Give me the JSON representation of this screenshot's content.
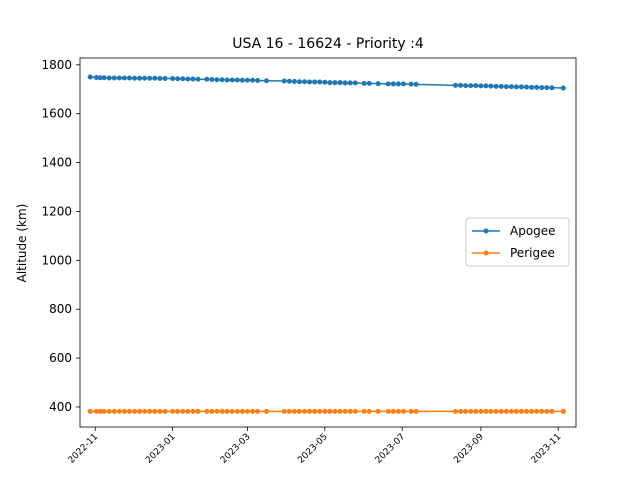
{
  "chart_data": {
    "type": "line",
    "title": "USA 16 - 16624 - Priority :4",
    "xlabel": "",
    "ylabel": "Altitude (km)",
    "ylim": [
      318,
      1828
    ],
    "xlim": [
      "2022-10-20",
      "2023-11-15"
    ],
    "yticks": [
      400,
      600,
      800,
      1000,
      1200,
      1400,
      1600,
      1800
    ],
    "xticks": [
      "2022-11",
      "2023-01",
      "2023-03",
      "2023-05",
      "2023-07",
      "2023-09",
      "2023-11"
    ],
    "grid": false,
    "legend_position": "center-right",
    "series": [
      {
        "name": "Apogee",
        "color": "#1f77b4",
        "points": [
          [
            "2022-10-28",
            1750
          ],
          [
            "2022-11-02",
            1748
          ],
          [
            "2022-11-05",
            1747
          ],
          [
            "2022-11-08",
            1747
          ],
          [
            "2022-11-12",
            1746
          ],
          [
            "2022-11-16",
            1746
          ],
          [
            "2022-11-20",
            1746
          ],
          [
            "2022-11-24",
            1746
          ],
          [
            "2022-11-28",
            1746
          ],
          [
            "2022-12-02",
            1745
          ],
          [
            "2022-12-06",
            1745
          ],
          [
            "2022-12-10",
            1745
          ],
          [
            "2022-12-14",
            1745
          ],
          [
            "2022-12-18",
            1745
          ],
          [
            "2022-12-22",
            1744
          ],
          [
            "2022-12-26",
            1744
          ],
          [
            "2023-01-01",
            1744
          ],
          [
            "2023-01-05",
            1743
          ],
          [
            "2023-01-09",
            1743
          ],
          [
            "2023-01-13",
            1742
          ],
          [
            "2023-01-17",
            1742
          ],
          [
            "2023-01-21",
            1741
          ],
          [
            "2023-01-28",
            1741
          ],
          [
            "2023-02-01",
            1740
          ],
          [
            "2023-02-05",
            1739
          ],
          [
            "2023-02-09",
            1739
          ],
          [
            "2023-02-13",
            1738
          ],
          [
            "2023-02-17",
            1738
          ],
          [
            "2023-02-21",
            1738
          ],
          [
            "2023-02-25",
            1737
          ],
          [
            "2023-03-01",
            1737
          ],
          [
            "2023-03-05",
            1737
          ],
          [
            "2023-03-09",
            1736
          ],
          [
            "2023-03-16",
            1735
          ],
          [
            "2023-03-30",
            1734
          ],
          [
            "2023-04-03",
            1733
          ],
          [
            "2023-04-07",
            1732
          ],
          [
            "2023-04-11",
            1731
          ],
          [
            "2023-04-15",
            1731
          ],
          [
            "2023-04-19",
            1730
          ],
          [
            "2023-04-23",
            1730
          ],
          [
            "2023-04-27",
            1730
          ],
          [
            "2023-05-01",
            1729
          ],
          [
            "2023-05-05",
            1727
          ],
          [
            "2023-05-09",
            1727
          ],
          [
            "2023-05-13",
            1727
          ],
          [
            "2023-05-17",
            1726
          ],
          [
            "2023-05-21",
            1726
          ],
          [
            "2023-05-25",
            1726
          ],
          [
            "2023-06-01",
            1724
          ],
          [
            "2023-06-05",
            1724
          ],
          [
            "2023-06-12",
            1723
          ],
          [
            "2023-06-20",
            1722
          ],
          [
            "2023-06-24",
            1722
          ],
          [
            "2023-06-28",
            1722
          ],
          [
            "2023-07-02",
            1722
          ],
          [
            "2023-07-08",
            1721
          ],
          [
            "2023-07-12",
            1720
          ],
          [
            "2023-08-12",
            1716
          ],
          [
            "2023-08-16",
            1716
          ],
          [
            "2023-08-20",
            1715
          ],
          [
            "2023-08-24",
            1715
          ],
          [
            "2023-08-28",
            1715
          ],
          [
            "2023-09-01",
            1714
          ],
          [
            "2023-09-05",
            1714
          ],
          [
            "2023-09-09",
            1713
          ],
          [
            "2023-09-13",
            1712
          ],
          [
            "2023-09-17",
            1712
          ],
          [
            "2023-09-21",
            1711
          ],
          [
            "2023-09-25",
            1711
          ],
          [
            "2023-09-29",
            1710
          ],
          [
            "2023-10-03",
            1710
          ],
          [
            "2023-10-07",
            1709
          ],
          [
            "2023-10-11",
            1708
          ],
          [
            "2023-10-15",
            1708
          ],
          [
            "2023-10-19",
            1707
          ],
          [
            "2023-10-23",
            1707
          ],
          [
            "2023-10-27",
            1706
          ],
          [
            "2023-11-05",
            1705
          ]
        ]
      },
      {
        "name": "Perigee",
        "color": "#ff7f0e",
        "points": [
          [
            "2022-10-28",
            382
          ],
          [
            "2022-11-02",
            382
          ],
          [
            "2022-11-05",
            382
          ],
          [
            "2022-11-08",
            382
          ],
          [
            "2022-11-12",
            382
          ],
          [
            "2022-11-16",
            382
          ],
          [
            "2022-11-20",
            382
          ],
          [
            "2022-11-24",
            382
          ],
          [
            "2022-11-28",
            382
          ],
          [
            "2022-12-02",
            382
          ],
          [
            "2022-12-06",
            382
          ],
          [
            "2022-12-10",
            382
          ],
          [
            "2022-12-14",
            382
          ],
          [
            "2022-12-18",
            382
          ],
          [
            "2022-12-22",
            382
          ],
          [
            "2022-12-26",
            382
          ],
          [
            "2023-01-01",
            382
          ],
          [
            "2023-01-05",
            382
          ],
          [
            "2023-01-09",
            382
          ],
          [
            "2023-01-13",
            382
          ],
          [
            "2023-01-17",
            382
          ],
          [
            "2023-01-21",
            382
          ],
          [
            "2023-01-28",
            382
          ],
          [
            "2023-02-01",
            382
          ],
          [
            "2023-02-05",
            382
          ],
          [
            "2023-02-09",
            382
          ],
          [
            "2023-02-13",
            382
          ],
          [
            "2023-02-17",
            382
          ],
          [
            "2023-02-21",
            382
          ],
          [
            "2023-02-25",
            382
          ],
          [
            "2023-03-01",
            382
          ],
          [
            "2023-03-05",
            382
          ],
          [
            "2023-03-09",
            382
          ],
          [
            "2023-03-16",
            382
          ],
          [
            "2023-03-30",
            382
          ],
          [
            "2023-04-03",
            382
          ],
          [
            "2023-04-07",
            382
          ],
          [
            "2023-04-11",
            382
          ],
          [
            "2023-04-15",
            382
          ],
          [
            "2023-04-19",
            382
          ],
          [
            "2023-04-23",
            382
          ],
          [
            "2023-04-27",
            382
          ],
          [
            "2023-05-01",
            382
          ],
          [
            "2023-05-05",
            382
          ],
          [
            "2023-05-09",
            382
          ],
          [
            "2023-05-13",
            382
          ],
          [
            "2023-05-17",
            382
          ],
          [
            "2023-05-21",
            382
          ],
          [
            "2023-05-25",
            382
          ],
          [
            "2023-06-01",
            382
          ],
          [
            "2023-06-05",
            382
          ],
          [
            "2023-06-12",
            382
          ],
          [
            "2023-06-20",
            382
          ],
          [
            "2023-06-24",
            382
          ],
          [
            "2023-06-28",
            382
          ],
          [
            "2023-07-02",
            382
          ],
          [
            "2023-07-08",
            382
          ],
          [
            "2023-07-12",
            382
          ],
          [
            "2023-08-12",
            382
          ],
          [
            "2023-08-16",
            382
          ],
          [
            "2023-08-20",
            382
          ],
          [
            "2023-08-24",
            382
          ],
          [
            "2023-08-28",
            382
          ],
          [
            "2023-09-01",
            382
          ],
          [
            "2023-09-05",
            382
          ],
          [
            "2023-09-09",
            382
          ],
          [
            "2023-09-13",
            382
          ],
          [
            "2023-09-17",
            382
          ],
          [
            "2023-09-21",
            382
          ],
          [
            "2023-09-25",
            382
          ],
          [
            "2023-09-29",
            382
          ],
          [
            "2023-10-03",
            382
          ],
          [
            "2023-10-07",
            382
          ],
          [
            "2023-10-11",
            382
          ],
          [
            "2023-10-15",
            382
          ],
          [
            "2023-10-19",
            382
          ],
          [
            "2023-10-23",
            382
          ],
          [
            "2023-10-27",
            382
          ],
          [
            "2023-11-05",
            382
          ]
        ]
      }
    ]
  }
}
